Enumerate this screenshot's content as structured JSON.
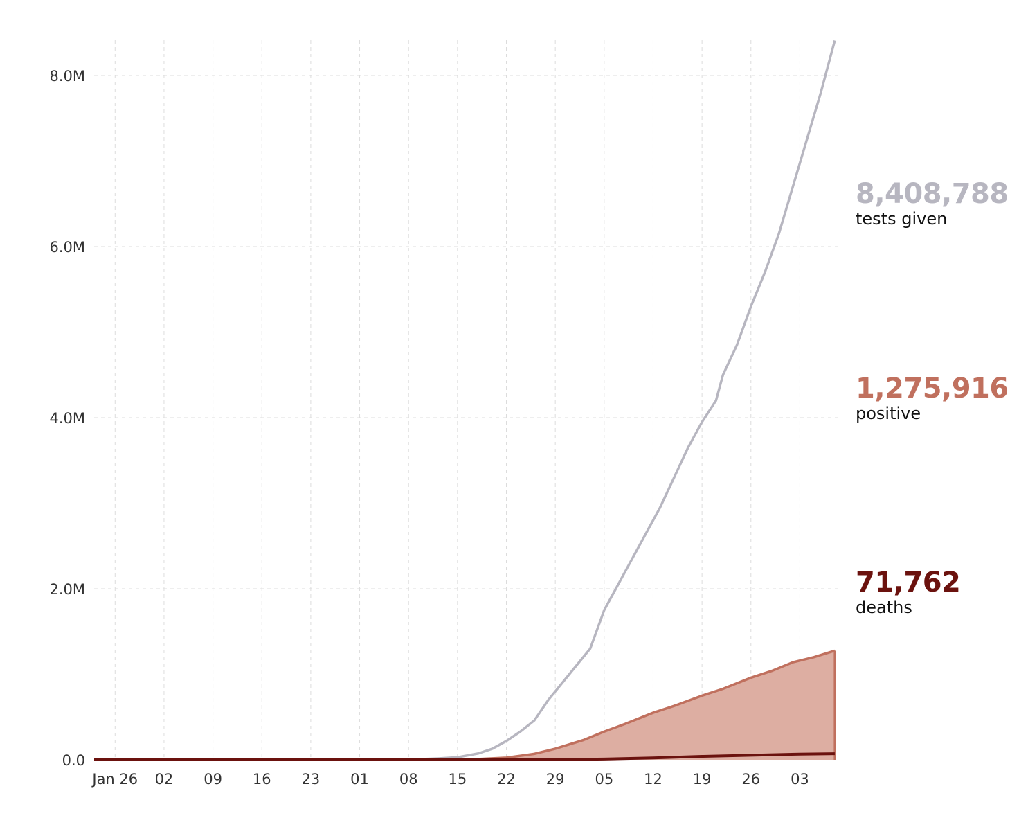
{
  "chart_data": {
    "type": "area",
    "x_axis": {
      "ticks": [
        {
          "date": "2020-01-26",
          "label": "Jan 26"
        },
        {
          "date": "2020-02-02",
          "label": "02"
        },
        {
          "date": "2020-02-09",
          "label": "09"
        },
        {
          "date": "2020-02-16",
          "label": "16"
        },
        {
          "date": "2020-02-23",
          "label": "23"
        },
        {
          "date": "2020-03-01",
          "label": "01"
        },
        {
          "date": "2020-03-08",
          "label": "08"
        },
        {
          "date": "2020-03-15",
          "label": "15"
        },
        {
          "date": "2020-03-22",
          "label": "22"
        },
        {
          "date": "2020-03-29",
          "label": "29"
        },
        {
          "date": "2020-04-05",
          "label": "05"
        },
        {
          "date": "2020-04-12",
          "label": "12"
        },
        {
          "date": "2020-04-19",
          "label": "19"
        },
        {
          "date": "2020-04-26",
          "label": "26"
        },
        {
          "date": "2020-05-03",
          "label": "03"
        }
      ],
      "range": [
        "2020-01-23",
        "2020-05-09"
      ]
    },
    "y_axis": {
      "ticks": [
        {
          "value": 0,
          "label": "0.0"
        },
        {
          "value": 2000000,
          "label": "2.0M"
        },
        {
          "value": 4000000,
          "label": "4.0M"
        },
        {
          "value": 6000000,
          "label": "6.0M"
        },
        {
          "value": 8000000,
          "label": "8.0M"
        }
      ],
      "range": [
        0,
        8500000
      ]
    },
    "grid": true,
    "legend_placement": "right",
    "series": [
      {
        "name": "tests given",
        "total_label": "8,408,788",
        "color": "#b7b6c0",
        "style": "line",
        "points": [
          [
            "2020-01-23",
            0
          ],
          [
            "2020-03-01",
            0
          ],
          [
            "2020-03-08",
            1500
          ],
          [
            "2020-03-12",
            15000
          ],
          [
            "2020-03-15",
            30000
          ],
          [
            "2020-03-18",
            75000
          ],
          [
            "2020-03-20",
            130000
          ],
          [
            "2020-03-22",
            220000
          ],
          [
            "2020-03-24",
            330000
          ],
          [
            "2020-03-26",
            460000
          ],
          [
            "2020-03-28",
            700000
          ],
          [
            "2020-03-30",
            900000
          ],
          [
            "2020-04-01",
            1100000
          ],
          [
            "2020-04-03",
            1300000
          ],
          [
            "2020-04-05",
            1750000
          ],
          [
            "2020-04-07",
            2050000
          ],
          [
            "2020-04-09",
            2350000
          ],
          [
            "2020-04-11",
            2650000
          ],
          [
            "2020-04-13",
            2950000
          ],
          [
            "2020-04-15",
            3300000
          ],
          [
            "2020-04-17",
            3650000
          ],
          [
            "2020-04-19",
            3950000
          ],
          [
            "2020-04-21",
            4200000
          ],
          [
            "2020-04-22",
            4500000
          ],
          [
            "2020-04-24",
            4850000
          ],
          [
            "2020-04-26",
            5300000
          ],
          [
            "2020-04-28",
            5700000
          ],
          [
            "2020-04-30",
            6150000
          ],
          [
            "2020-05-02",
            6700000
          ],
          [
            "2020-05-04",
            7250000
          ],
          [
            "2020-05-06",
            7800000
          ],
          [
            "2020-05-08",
            8408788
          ]
        ]
      },
      {
        "name": "positive",
        "total_label": "1,275,916",
        "color": "#c0705e",
        "fill": "#ddaea2",
        "style": "area",
        "points": [
          [
            "2020-01-23",
            0
          ],
          [
            "2020-03-08",
            500
          ],
          [
            "2020-03-15",
            4000
          ],
          [
            "2020-03-18",
            9000
          ],
          [
            "2020-03-22",
            25000
          ],
          [
            "2020-03-26",
            70000
          ],
          [
            "2020-03-29",
            130000
          ],
          [
            "2020-04-02",
            230000
          ],
          [
            "2020-04-05",
            330000
          ],
          [
            "2020-04-08",
            420000
          ],
          [
            "2020-04-12",
            550000
          ],
          [
            "2020-04-15",
            630000
          ],
          [
            "2020-04-19",
            750000
          ],
          [
            "2020-04-22",
            830000
          ],
          [
            "2020-04-26",
            960000
          ],
          [
            "2020-04-29",
            1040000
          ],
          [
            "2020-05-02",
            1140000
          ],
          [
            "2020-05-05",
            1200000
          ],
          [
            "2020-05-08",
            1275916
          ]
        ]
      },
      {
        "name": "deaths",
        "total_label": "71,762",
        "color": "#6b120e",
        "style": "line",
        "points": [
          [
            "2020-01-23",
            0
          ],
          [
            "2020-03-15",
            0
          ],
          [
            "2020-03-22",
            500
          ],
          [
            "2020-03-29",
            2500
          ],
          [
            "2020-04-05",
            9000
          ],
          [
            "2020-04-12",
            22000
          ],
          [
            "2020-04-19",
            40000
          ],
          [
            "2020-04-26",
            54000
          ],
          [
            "2020-05-03",
            67000
          ],
          [
            "2020-05-08",
            71762
          ]
        ]
      }
    ]
  }
}
